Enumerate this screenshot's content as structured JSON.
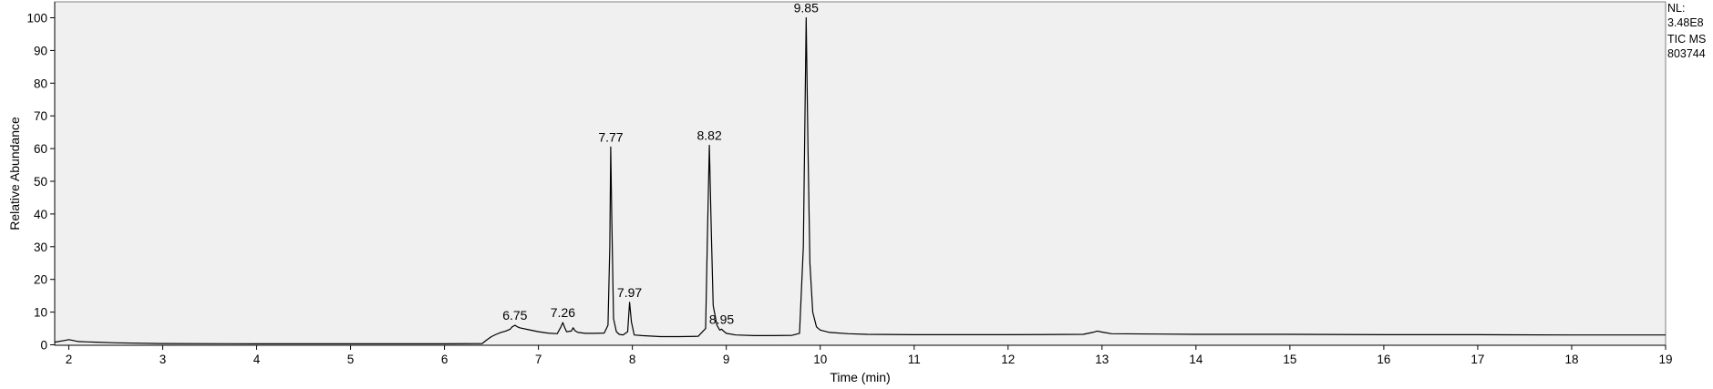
{
  "chart_data": {
    "type": "line",
    "title": "",
    "xlabel": "Time (min)",
    "ylabel": "Relative Abundance",
    "xlim": [
      1.85,
      19.0
    ],
    "ylim": [
      0,
      100
    ],
    "grid": false,
    "x_ticks": [
      2,
      3,
      4,
      5,
      6,
      7,
      8,
      9,
      10,
      11,
      12,
      13,
      14,
      15,
      16,
      17,
      18,
      19
    ],
    "y_ticks": [
      0,
      10,
      20,
      30,
      40,
      50,
      60,
      70,
      80,
      90,
      100
    ],
    "series": [
      {
        "values_note": "",
        "x": [
          1.85,
          1.95,
          2.0,
          2.05,
          2.1,
          2.2,
          2.3,
          2.5,
          3.0,
          4.0,
          5.0,
          6.0,
          6.4,
          6.45,
          6.5,
          6.55,
          6.6,
          6.65,
          6.7,
          6.72,
          6.75,
          6.77,
          6.8,
          6.9,
          7.0,
          7.1,
          7.2,
          7.24,
          7.26,
          7.28,
          7.3,
          7.35,
          7.37,
          7.39,
          7.42,
          7.5,
          7.6,
          7.7,
          7.74,
          7.76,
          7.77,
          7.78,
          7.8,
          7.83,
          7.86,
          7.9,
          7.95,
          7.97,
          7.99,
          8.02,
          8.1,
          8.3,
          8.5,
          8.7,
          8.78,
          8.8,
          8.82,
          8.84,
          8.86,
          8.9,
          8.93,
          8.95,
          8.97,
          9.0,
          9.1,
          9.3,
          9.5,
          9.7,
          9.78,
          9.82,
          9.85,
          9.87,
          9.89,
          9.92,
          9.96,
          10.0,
          10.1,
          10.3,
          10.5,
          11.0,
          12.0,
          12.8,
          12.9,
          12.95,
          13.0,
          13.1,
          14.0,
          15.0,
          16.0,
          17.0,
          18.0,
          19.0
        ],
        "y": [
          0.8,
          1.3,
          1.6,
          1.3,
          1.0,
          0.9,
          0.8,
          0.6,
          0.4,
          0.3,
          0.3,
          0.3,
          0.4,
          1.5,
          2.5,
          3.2,
          3.8,
          4.2,
          4.8,
          5.5,
          6.0,
          5.6,
          5.2,
          4.6,
          4.0,
          3.6,
          3.4,
          5.5,
          6.8,
          5.2,
          4.0,
          4.2,
          5.2,
          4.3,
          3.8,
          3.5,
          3.5,
          3.6,
          6.0,
          30.0,
          60.5,
          40.0,
          8.0,
          4.0,
          3.2,
          3.0,
          4.0,
          13.0,
          7.0,
          3.0,
          2.8,
          2.5,
          2.5,
          2.6,
          5.0,
          35.0,
          61.0,
          35.0,
          12.0,
          6.0,
          4.5,
          4.8,
          4.2,
          3.5,
          3.0,
          2.8,
          2.8,
          2.9,
          3.5,
          30.0,
          100.0,
          60.0,
          25.0,
          10.0,
          5.5,
          4.5,
          3.8,
          3.4,
          3.2,
          3.1,
          3.1,
          3.2,
          3.8,
          4.2,
          3.9,
          3.4,
          3.2,
          3.2,
          3.1,
          3.1,
          3.0,
          3.0
        ]
      }
    ],
    "annotations": [
      {
        "x": 6.75,
        "y": 6.0,
        "text": "6.75"
      },
      {
        "x": 7.26,
        "y": 6.8,
        "text": "7.26"
      },
      {
        "x": 7.77,
        "y": 60.5,
        "text": "7.77"
      },
      {
        "x": 7.97,
        "y": 13.0,
        "text": "7.97"
      },
      {
        "x": 8.82,
        "y": 61.0,
        "text": "8.82"
      },
      {
        "x": 8.95,
        "y": 4.8,
        "text": "8.95"
      },
      {
        "x": 9.85,
        "y": 100.0,
        "text": "9.85"
      }
    ]
  },
  "side_info": {
    "nl_label": "NL:",
    "nl_value": "3.48E8",
    "trace": "TIC  MS",
    "file": "803744"
  },
  "colors": {
    "plot_bg": "#f0f0f0",
    "trace": "#000000",
    "frame": "#7f7f7f"
  }
}
